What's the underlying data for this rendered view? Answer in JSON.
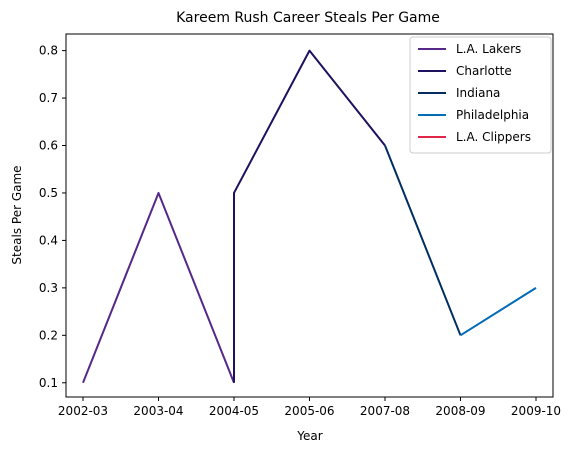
{
  "chart_data": {
    "type": "line",
    "title": "Kareem Rush Career Steals Per Game",
    "xlabel": "Year",
    "ylabel": "Steals Per Game",
    "categories": [
      "2002-03",
      "2003-04",
      "2004-05",
      "2005-06",
      "2007-08",
      "2008-09",
      "2009-10"
    ],
    "ylim": [
      0.07,
      0.835
    ],
    "yticks": [
      "0.1",
      "0.2",
      "0.3",
      "0.4",
      "0.5",
      "0.6",
      "0.7",
      "0.8"
    ],
    "grid": false,
    "legend_position": "top-right",
    "series": [
      {
        "name": "L.A. Lakers",
        "color": "#55288a",
        "points": [
          {
            "x": "2002-03",
            "y": 0.1
          },
          {
            "x": "2003-04",
            "y": 0.5
          },
          {
            "x": "2004-05",
            "y": 0.1
          }
        ]
      },
      {
        "name": "Charlotte",
        "color": "#1d1160",
        "points": [
          {
            "x": "2004-05",
            "y": 0.1
          },
          {
            "x": "2004-05",
            "y": 0.5
          },
          {
            "x": "2005-06",
            "y": 0.8
          },
          {
            "x": "2007-08",
            "y": 0.6
          }
        ]
      },
      {
        "name": "Indiana",
        "color": "#002d62",
        "points": [
          {
            "x": "2007-08",
            "y": 0.6
          },
          {
            "x": "2008-09",
            "y": 0.2
          }
        ]
      },
      {
        "name": "Philadelphia",
        "color": "#006bb6",
        "points": [
          {
            "x": "2008-09",
            "y": 0.2
          },
          {
            "x": "2009-10",
            "y": 0.3
          }
        ]
      },
      {
        "name": "L.A. Clippers",
        "color": "#e0264a",
        "points": []
      }
    ]
  }
}
